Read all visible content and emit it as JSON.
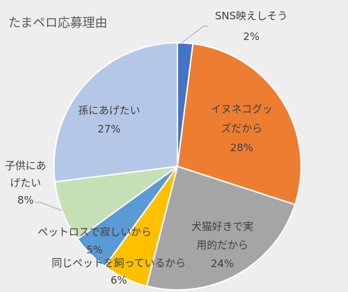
{
  "chart_data": {
    "type": "pie",
    "title": "たまペロ応募理由",
    "categories": [
      "SNS映えしそう",
      "イヌネコグッズだから",
      "犬猫好きで実用的だから",
      "同じペットを飼っているから",
      "ペットロスで寂しいから",
      "子供にあげたい",
      "孫にあげたい"
    ],
    "values": [
      2,
      28,
      24,
      6,
      5,
      8,
      27
    ],
    "data_labels": [
      "2%",
      "28%",
      "24%",
      "6%",
      "5%",
      "8%",
      "27%"
    ],
    "colors": [
      "#4472C4",
      "#ED7D31",
      "#A5A5A5",
      "#FFC000",
      "#5B9BD5",
      "#C5E0B4",
      "#B4C7E7"
    ]
  }
}
